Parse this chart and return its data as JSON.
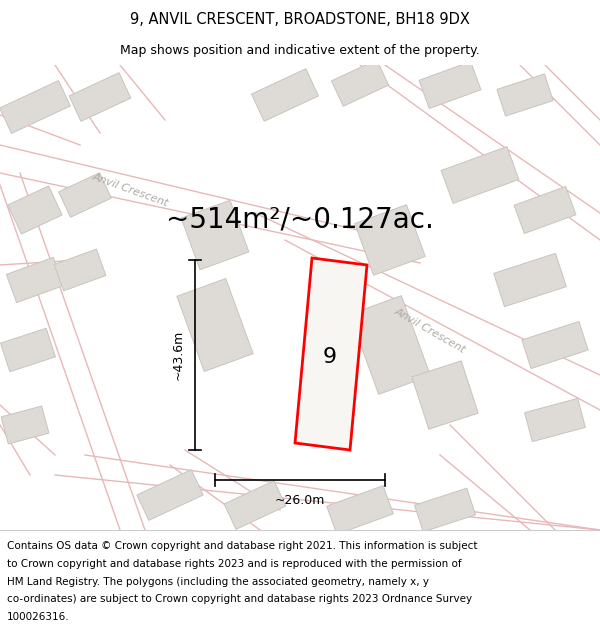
{
  "title_line1": "9, ANVIL CRESCENT, BROADSTONE, BH18 9DX",
  "title_line2": "Map shows position and indicative extent of the property.",
  "area_text": "~514m²/~0.127ac.",
  "plot_number": "9",
  "dim_vertical": "~43.6m",
  "dim_horizontal": "~26.0m",
  "road_label1": "Anvil Crescent",
  "road_label2": "Anvil Crescent",
  "footer_lines": [
    "Contains OS data © Crown copyright and database right 2021. This information is subject",
    "to Crown copyright and database rights 2023 and is reproduced with the permission of",
    "HM Land Registry. The polygons (including the associated geometry, namely x, y",
    "co-ordinates) are subject to Crown copyright and database rights 2023 Ordnance Survey",
    "100026316."
  ],
  "map_bg": "#f7f6f4",
  "building_fill": "#dedad5",
  "building_edge": "#c8c4be",
  "road_line_color": "#e8b8b8",
  "plot_color": "#ff0000",
  "road_label_color": "#b0aaa4",
  "title_fontsize": 10.5,
  "subtitle_fontsize": 9,
  "area_fontsize": 20,
  "plot_num_fontsize": 16,
  "dim_fontsize": 9,
  "road_label_fontsize": 8,
  "footer_fontsize": 7.5
}
